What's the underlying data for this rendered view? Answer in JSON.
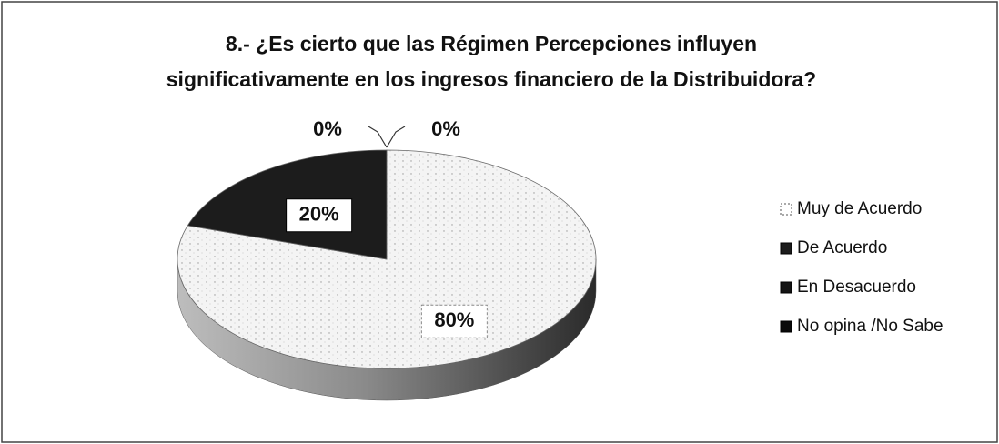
{
  "chart_data": {
    "type": "pie",
    "title": [
      "8.- ¿Es cierto que las Régimen  Percepciones influyen",
      "significativamente en los ingresos financiero de la Distribuidora?"
    ],
    "categories": [
      "Muy de Acuerdo",
      "De Acuerdo",
      "En Desacuerdo",
      "No opina /No Sabe"
    ],
    "values": [
      80,
      20,
      0,
      0
    ],
    "value_labels": [
      "80%",
      "20%",
      "0%",
      "0%"
    ],
    "colors": [
      "#f2f2f2",
      "#1c1c1c",
      "#141414",
      "#0a0a0a"
    ],
    "legend": "right"
  }
}
